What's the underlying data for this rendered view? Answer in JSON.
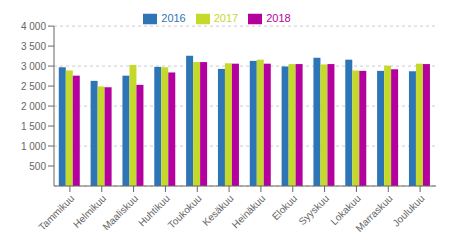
{
  "chart_data": {
    "type": "bar",
    "categories": [
      "Tammikuu",
      "Helmikuu",
      "Maaliskuu",
      "Huhtikuu",
      "Toukokuu",
      "Kesäkuu",
      "Heinäkuu",
      "Elokuu",
      "Syyskuu",
      "Lokakuu",
      "Marraskuu",
      "Joulukuu"
    ],
    "series": [
      {
        "name": "2016",
        "color": "#2e75b6",
        "values": [
          2970,
          2630,
          2760,
          2980,
          3260,
          2930,
          3130,
          2990,
          3210,
          3160,
          2880,
          2870
        ]
      },
      {
        "name": "2017",
        "color": "#c5d92d",
        "values": [
          2890,
          2490,
          3030,
          2970,
          3100,
          3070,
          3160,
          3050,
          3040,
          2890,
          3010,
          3060
        ]
      },
      {
        "name": "2018",
        "color": "#b4009e",
        "values": [
          2760,
          2470,
          2530,
          2840,
          3100,
          3060,
          3060,
          3050,
          3050,
          2880,
          2920,
          3050
        ]
      }
    ],
    "ylim": [
      0,
      4000
    ],
    "yticks": [
      500,
      {
        "value": 1000,
        "label": "1 000"
      },
      {
        "value": 1500,
        "label": "1 500"
      },
      {
        "value": 2000,
        "label": "2 000"
      },
      {
        "value": 2500,
        "label": "2 500"
      },
      {
        "value": 3000,
        "label": "3 000"
      },
      {
        "value": 3500,
        "label": "3 500"
      },
      {
        "value": 4000,
        "label": "4 000"
      }
    ],
    "grid": true,
    "legend": "top"
  }
}
